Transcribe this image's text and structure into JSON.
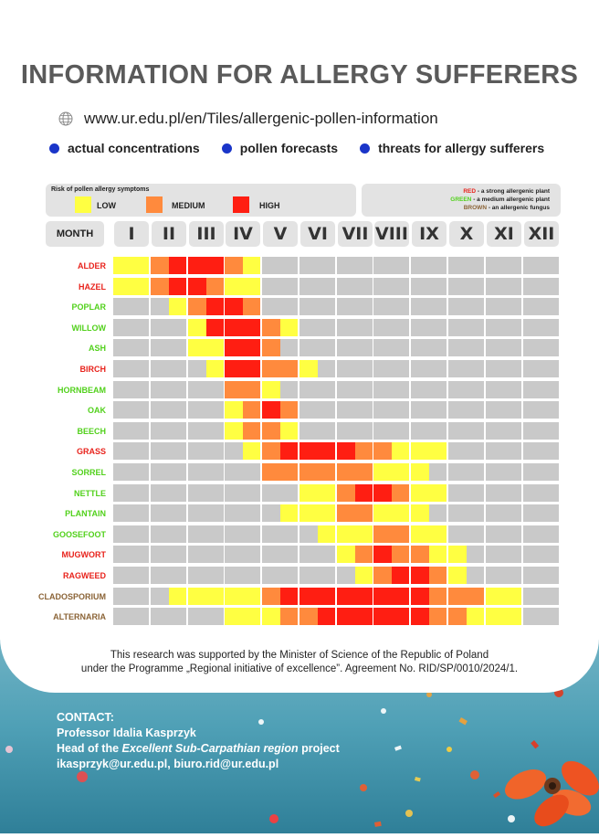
{
  "title": "INFORMATION FOR ALLERGY SUFFERERS",
  "url": "www.ur.edu.pl/en/Tiles/allergenic-pollen-information",
  "links": [
    "actual concentrations",
    "pollen forecasts",
    "threats for allergy sufferers"
  ],
  "legend": {
    "title": "Risk of pollen allergy symptoms",
    "levels": [
      {
        "label": "LOW",
        "color": "#ffff42"
      },
      {
        "label": "MEDIUM",
        "color": "#ff8a3d"
      },
      {
        "label": "HIGH",
        "color": "#ff1e12"
      }
    ]
  },
  "key": [
    {
      "word": "RED",
      "text": " - a strong allergenic plant"
    },
    {
      "word": "GREEN",
      "text": " - a medium allergenic plant"
    },
    {
      "word": "BROWN",
      "text": " - an allergenic fungus"
    }
  ],
  "month_header": "MONTH",
  "months": [
    "I",
    "II",
    "III",
    "IV",
    "V",
    "VI",
    "VII",
    "VIII",
    "IX",
    "X",
    "XI",
    "XII"
  ],
  "colors": {
    "none": "#c9c9c9",
    "low": "#ffff42",
    "medium": "#ff8a3d",
    "high": "#ff1e12",
    "red": "#e8231c",
    "green": "#52d11c",
    "brown": "#8b6437"
  },
  "level_note": "0 = no pollen, 1 = low, 2 = medium, 3 = high; two values per month (first half, second half)",
  "pollen": [
    {
      "name": "ALDER",
      "group": "red",
      "risk": [
        1,
        1,
        2,
        3,
        3,
        3,
        2,
        1,
        0,
        0,
        0,
        0,
        0,
        0,
        0,
        0,
        0,
        0,
        0,
        0,
        0,
        0,
        0,
        0
      ]
    },
    {
      "name": "HAZEL",
      "group": "red",
      "risk": [
        1,
        1,
        2,
        3,
        3,
        2,
        1,
        1,
        0,
        0,
        0,
        0,
        0,
        0,
        0,
        0,
        0,
        0,
        0,
        0,
        0,
        0,
        0,
        0
      ]
    },
    {
      "name": "POPLAR",
      "group": "green",
      "risk": [
        0,
        0,
        0,
        1,
        2,
        3,
        3,
        2,
        0,
        0,
        0,
        0,
        0,
        0,
        0,
        0,
        0,
        0,
        0,
        0,
        0,
        0,
        0,
        0
      ]
    },
    {
      "name": "WILLOW",
      "group": "green",
      "risk": [
        0,
        0,
        0,
        0,
        1,
        3,
        3,
        3,
        2,
        1,
        0,
        0,
        0,
        0,
        0,
        0,
        0,
        0,
        0,
        0,
        0,
        0,
        0,
        0
      ]
    },
    {
      "name": "ASH",
      "group": "green",
      "risk": [
        0,
        0,
        0,
        0,
        1,
        1,
        3,
        3,
        2,
        0,
        0,
        0,
        0,
        0,
        0,
        0,
        0,
        0,
        0,
        0,
        0,
        0,
        0,
        0
      ]
    },
    {
      "name": "BIRCH",
      "group": "red",
      "risk": [
        0,
        0,
        0,
        0,
        0,
        1,
        3,
        3,
        2,
        2,
        1,
        0,
        0,
        0,
        0,
        0,
        0,
        0,
        0,
        0,
        0,
        0,
        0,
        0
      ]
    },
    {
      "name": "HORNBEAM",
      "group": "green",
      "risk": [
        0,
        0,
        0,
        0,
        0,
        0,
        2,
        2,
        1,
        0,
        0,
        0,
        0,
        0,
        0,
        0,
        0,
        0,
        0,
        0,
        0,
        0,
        0,
        0
      ]
    },
    {
      "name": "OAK",
      "group": "green",
      "risk": [
        0,
        0,
        0,
        0,
        0,
        0,
        1,
        2,
        3,
        2,
        0,
        0,
        0,
        0,
        0,
        0,
        0,
        0,
        0,
        0,
        0,
        0,
        0,
        0
      ]
    },
    {
      "name": "BEECH",
      "group": "green",
      "risk": [
        0,
        0,
        0,
        0,
        0,
        0,
        1,
        2,
        2,
        1,
        0,
        0,
        0,
        0,
        0,
        0,
        0,
        0,
        0,
        0,
        0,
        0,
        0,
        0
      ]
    },
    {
      "name": "GRASS",
      "group": "red",
      "risk": [
        0,
        0,
        0,
        0,
        0,
        0,
        0,
        1,
        2,
        3,
        3,
        3,
        3,
        2,
        2,
        1,
        1,
        1,
        0,
        0,
        0,
        0,
        0,
        0
      ]
    },
    {
      "name": "SORREL",
      "group": "green",
      "risk": [
        0,
        0,
        0,
        0,
        0,
        0,
        0,
        0,
        2,
        2,
        2,
        2,
        2,
        2,
        1,
        1,
        1,
        0,
        0,
        0,
        0,
        0,
        0,
        0
      ]
    },
    {
      "name": "NETTLE",
      "group": "green",
      "risk": [
        0,
        0,
        0,
        0,
        0,
        0,
        0,
        0,
        0,
        0,
        1,
        1,
        2,
        3,
        3,
        2,
        1,
        1,
        0,
        0,
        0,
        0,
        0,
        0
      ]
    },
    {
      "name": "PLANTAIN",
      "group": "green",
      "risk": [
        0,
        0,
        0,
        0,
        0,
        0,
        0,
        0,
        0,
        1,
        1,
        1,
        2,
        2,
        1,
        1,
        1,
        0,
        0,
        0,
        0,
        0,
        0,
        0
      ]
    },
    {
      "name": "GOOSEFOOT",
      "group": "green",
      "risk": [
        0,
        0,
        0,
        0,
        0,
        0,
        0,
        0,
        0,
        0,
        0,
        1,
        1,
        1,
        2,
        2,
        1,
        1,
        0,
        0,
        0,
        0,
        0,
        0
      ]
    },
    {
      "name": "MUGWORT",
      "group": "red",
      "risk": [
        0,
        0,
        0,
        0,
        0,
        0,
        0,
        0,
        0,
        0,
        0,
        0,
        1,
        2,
        3,
        2,
        2,
        1,
        1,
        0,
        0,
        0,
        0,
        0
      ]
    },
    {
      "name": "RAGWEED",
      "group": "red",
      "risk": [
        0,
        0,
        0,
        0,
        0,
        0,
        0,
        0,
        0,
        0,
        0,
        0,
        0,
        1,
        2,
        3,
        3,
        2,
        1,
        0,
        0,
        0,
        0,
        0
      ]
    },
    {
      "name": "CLADOSPORIUM",
      "group": "brown",
      "risk": [
        0,
        0,
        0,
        1,
        1,
        1,
        1,
        1,
        2,
        3,
        3,
        3,
        3,
        3,
        3,
        3,
        3,
        2,
        2,
        2,
        1,
        1,
        0,
        0
      ]
    },
    {
      "name": "ALTERNARIA",
      "group": "brown",
      "risk": [
        0,
        0,
        0,
        0,
        0,
        0,
        1,
        1,
        1,
        2,
        2,
        3,
        3,
        3,
        3,
        3,
        3,
        2,
        2,
        1,
        1,
        1,
        0,
        0
      ]
    }
  ],
  "note_lines": [
    "This research was supported by the Minister of Science of the Republic of Poland",
    "under the Programme „Regional initiative of excellence”. Agreement No. RID/SP/0010/2024/1."
  ],
  "contact": {
    "heading": "CONTACT:",
    "name": "Professor Idalia Kasprzyk",
    "role_prefix": "Head of the ",
    "role_project": "Excellent  Sub-Carpathian region",
    "role_suffix": " project",
    "emails": "ikasprzyk@ur.edu.pl, biuro.rid@ur.edu.pl"
  }
}
